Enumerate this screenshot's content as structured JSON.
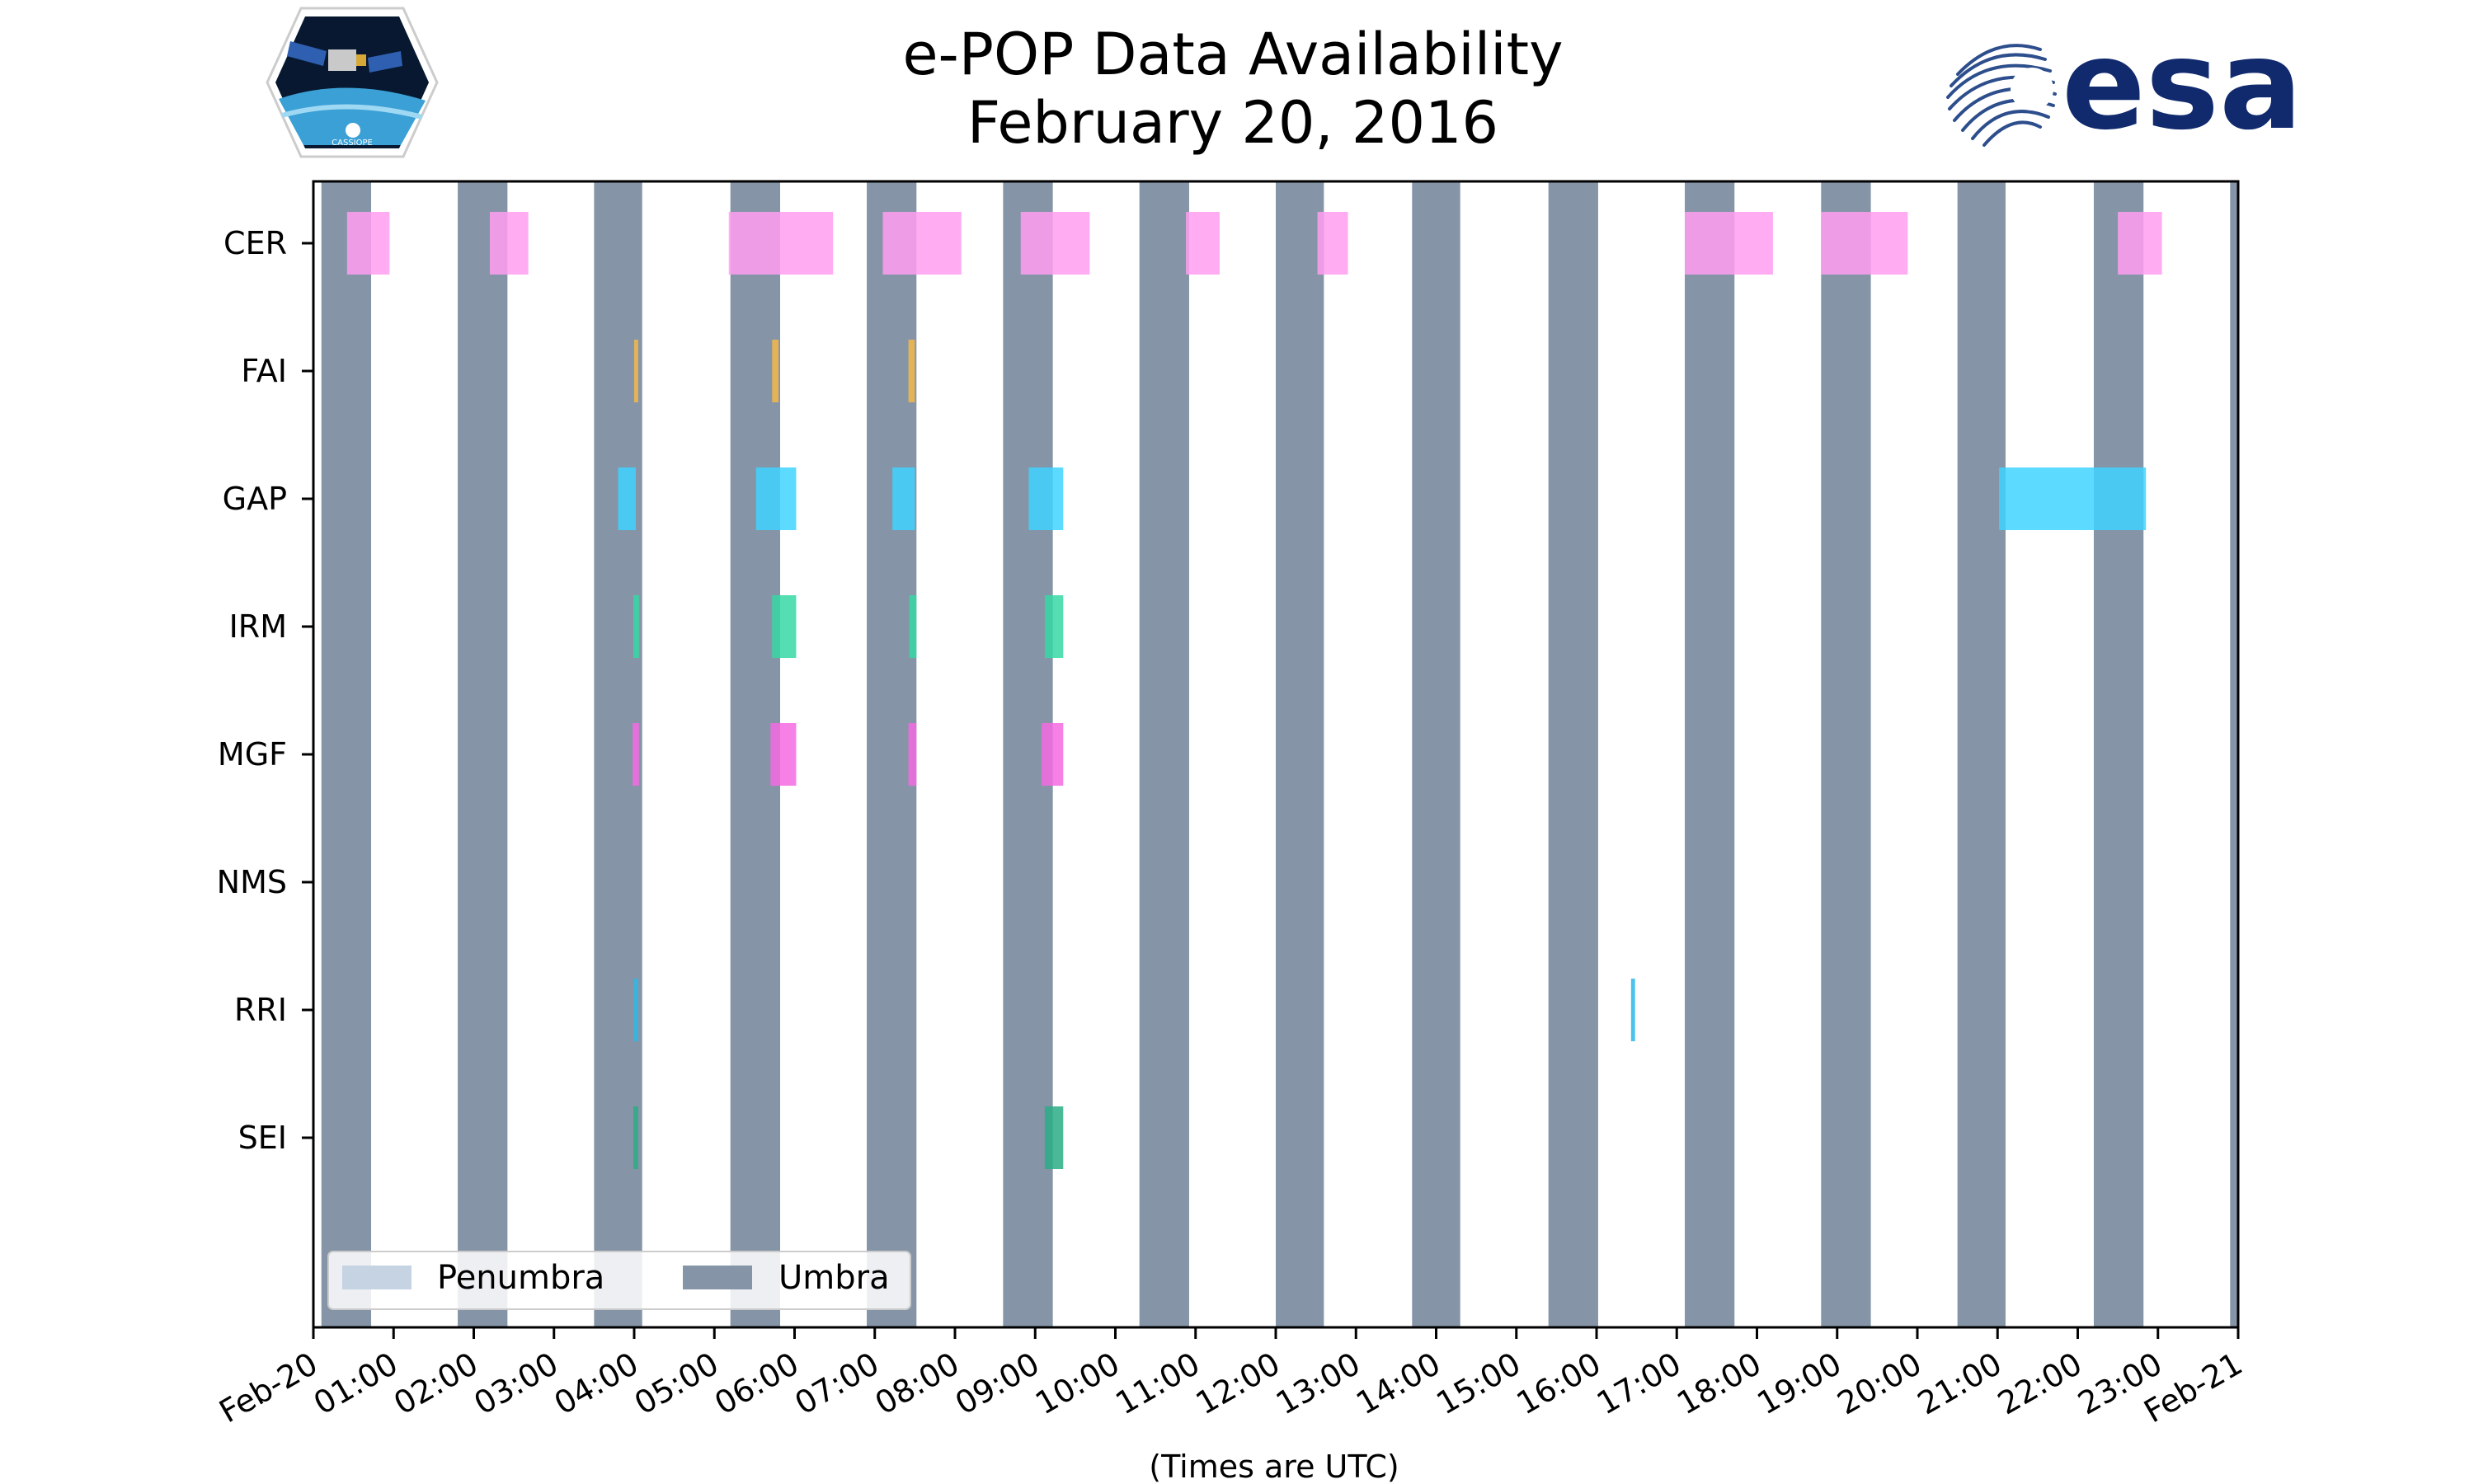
{
  "chart_data": {
    "type": "timeline",
    "title": [
      "e-POP Data Availability",
      "February 20, 2016"
    ],
    "xlabel": "(Times are UTC)",
    "x_range_hours": [
      0,
      24
    ],
    "x_tick_labels": [
      "Feb-20",
      "01:00",
      "02:00",
      "03:00",
      "04:00",
      "05:00",
      "06:00",
      "07:00",
      "08:00",
      "09:00",
      "10:00",
      "11:00",
      "12:00",
      "13:00",
      "14:00",
      "15:00",
      "16:00",
      "17:00",
      "18:00",
      "19:00",
      "20:00",
      "21:00",
      "22:00",
      "23:00",
      "Feb-21"
    ],
    "instruments": [
      "CER",
      "FAI",
      "GAP",
      "IRM",
      "MGF",
      "NMS",
      "RRI",
      "SEI"
    ],
    "umbra_intervals": [
      [
        0.1,
        0.72
      ],
      [
        1.8,
        2.42
      ],
      [
        3.5,
        4.1
      ],
      [
        5.2,
        5.82
      ],
      [
        6.9,
        7.52
      ],
      [
        8.6,
        9.22
      ],
      [
        10.3,
        10.92
      ],
      [
        12.0,
        12.6
      ],
      [
        13.7,
        14.3
      ],
      [
        15.4,
        16.02
      ],
      [
        17.1,
        17.72
      ],
      [
        18.8,
        19.42
      ],
      [
        20.5,
        21.1
      ],
      [
        22.2,
        22.82
      ],
      [
        23.9,
        24.0
      ]
    ],
    "penumbra_intervals": [],
    "availability": {
      "CER": [
        [
          0.42,
          0.95
        ],
        [
          2.2,
          2.68
        ],
        [
          5.18,
          6.48
        ],
        [
          7.1,
          8.08
        ],
        [
          8.82,
          9.68
        ],
        [
          10.88,
          11.3
        ],
        [
          12.52,
          12.9
        ],
        [
          17.1,
          18.2
        ],
        [
          18.8,
          19.88
        ],
        [
          22.5,
          23.05
        ]
      ],
      "FAI": [
        [
          4.0,
          4.05
        ],
        [
          5.72,
          5.8
        ],
        [
          7.42,
          7.5
        ]
      ],
      "GAP": [
        [
          3.8,
          4.02
        ],
        [
          5.52,
          6.02
        ],
        [
          7.22,
          7.5
        ],
        [
          8.92,
          9.35
        ],
        [
          21.02,
          22.85
        ]
      ],
      "IRM": [
        [
          3.99,
          4.06
        ],
        [
          5.72,
          6.02
        ],
        [
          7.43,
          7.52
        ],
        [
          9.12,
          9.35
        ]
      ],
      "MGF": [
        [
          3.98,
          4.06
        ],
        [
          5.7,
          6.02
        ],
        [
          7.42,
          7.52
        ],
        [
          9.08,
          9.35
        ]
      ],
      "NMS": [],
      "RRI": [
        [
          4.0,
          4.05
        ],
        [
          16.43,
          16.48
        ]
      ],
      "SEI": [
        [
          3.99,
          4.05
        ],
        [
          9.12,
          9.35
        ]
      ]
    },
    "colors": {
      "CER": "#ff9df0",
      "FAI": "#f5b84a",
      "GAP": "#40d4ff",
      "IRM": "#36d8a4",
      "MGF": "#f46ae2",
      "NMS": "#888888",
      "RRI": "#2bb8ea",
      "SEI": "#2aad86",
      "umbra": "#8595a7",
      "penumbra": "#c6d3e3"
    },
    "legend": {
      "placement": "lower-left",
      "items": [
        {
          "label": "Penumbra",
          "color": "#c6d3e3"
        },
        {
          "label": "Umbra",
          "color": "#8595a7"
        }
      ]
    }
  },
  "logos": {
    "cassiope_label": "CASSIOPE",
    "esa_label": "esa"
  }
}
